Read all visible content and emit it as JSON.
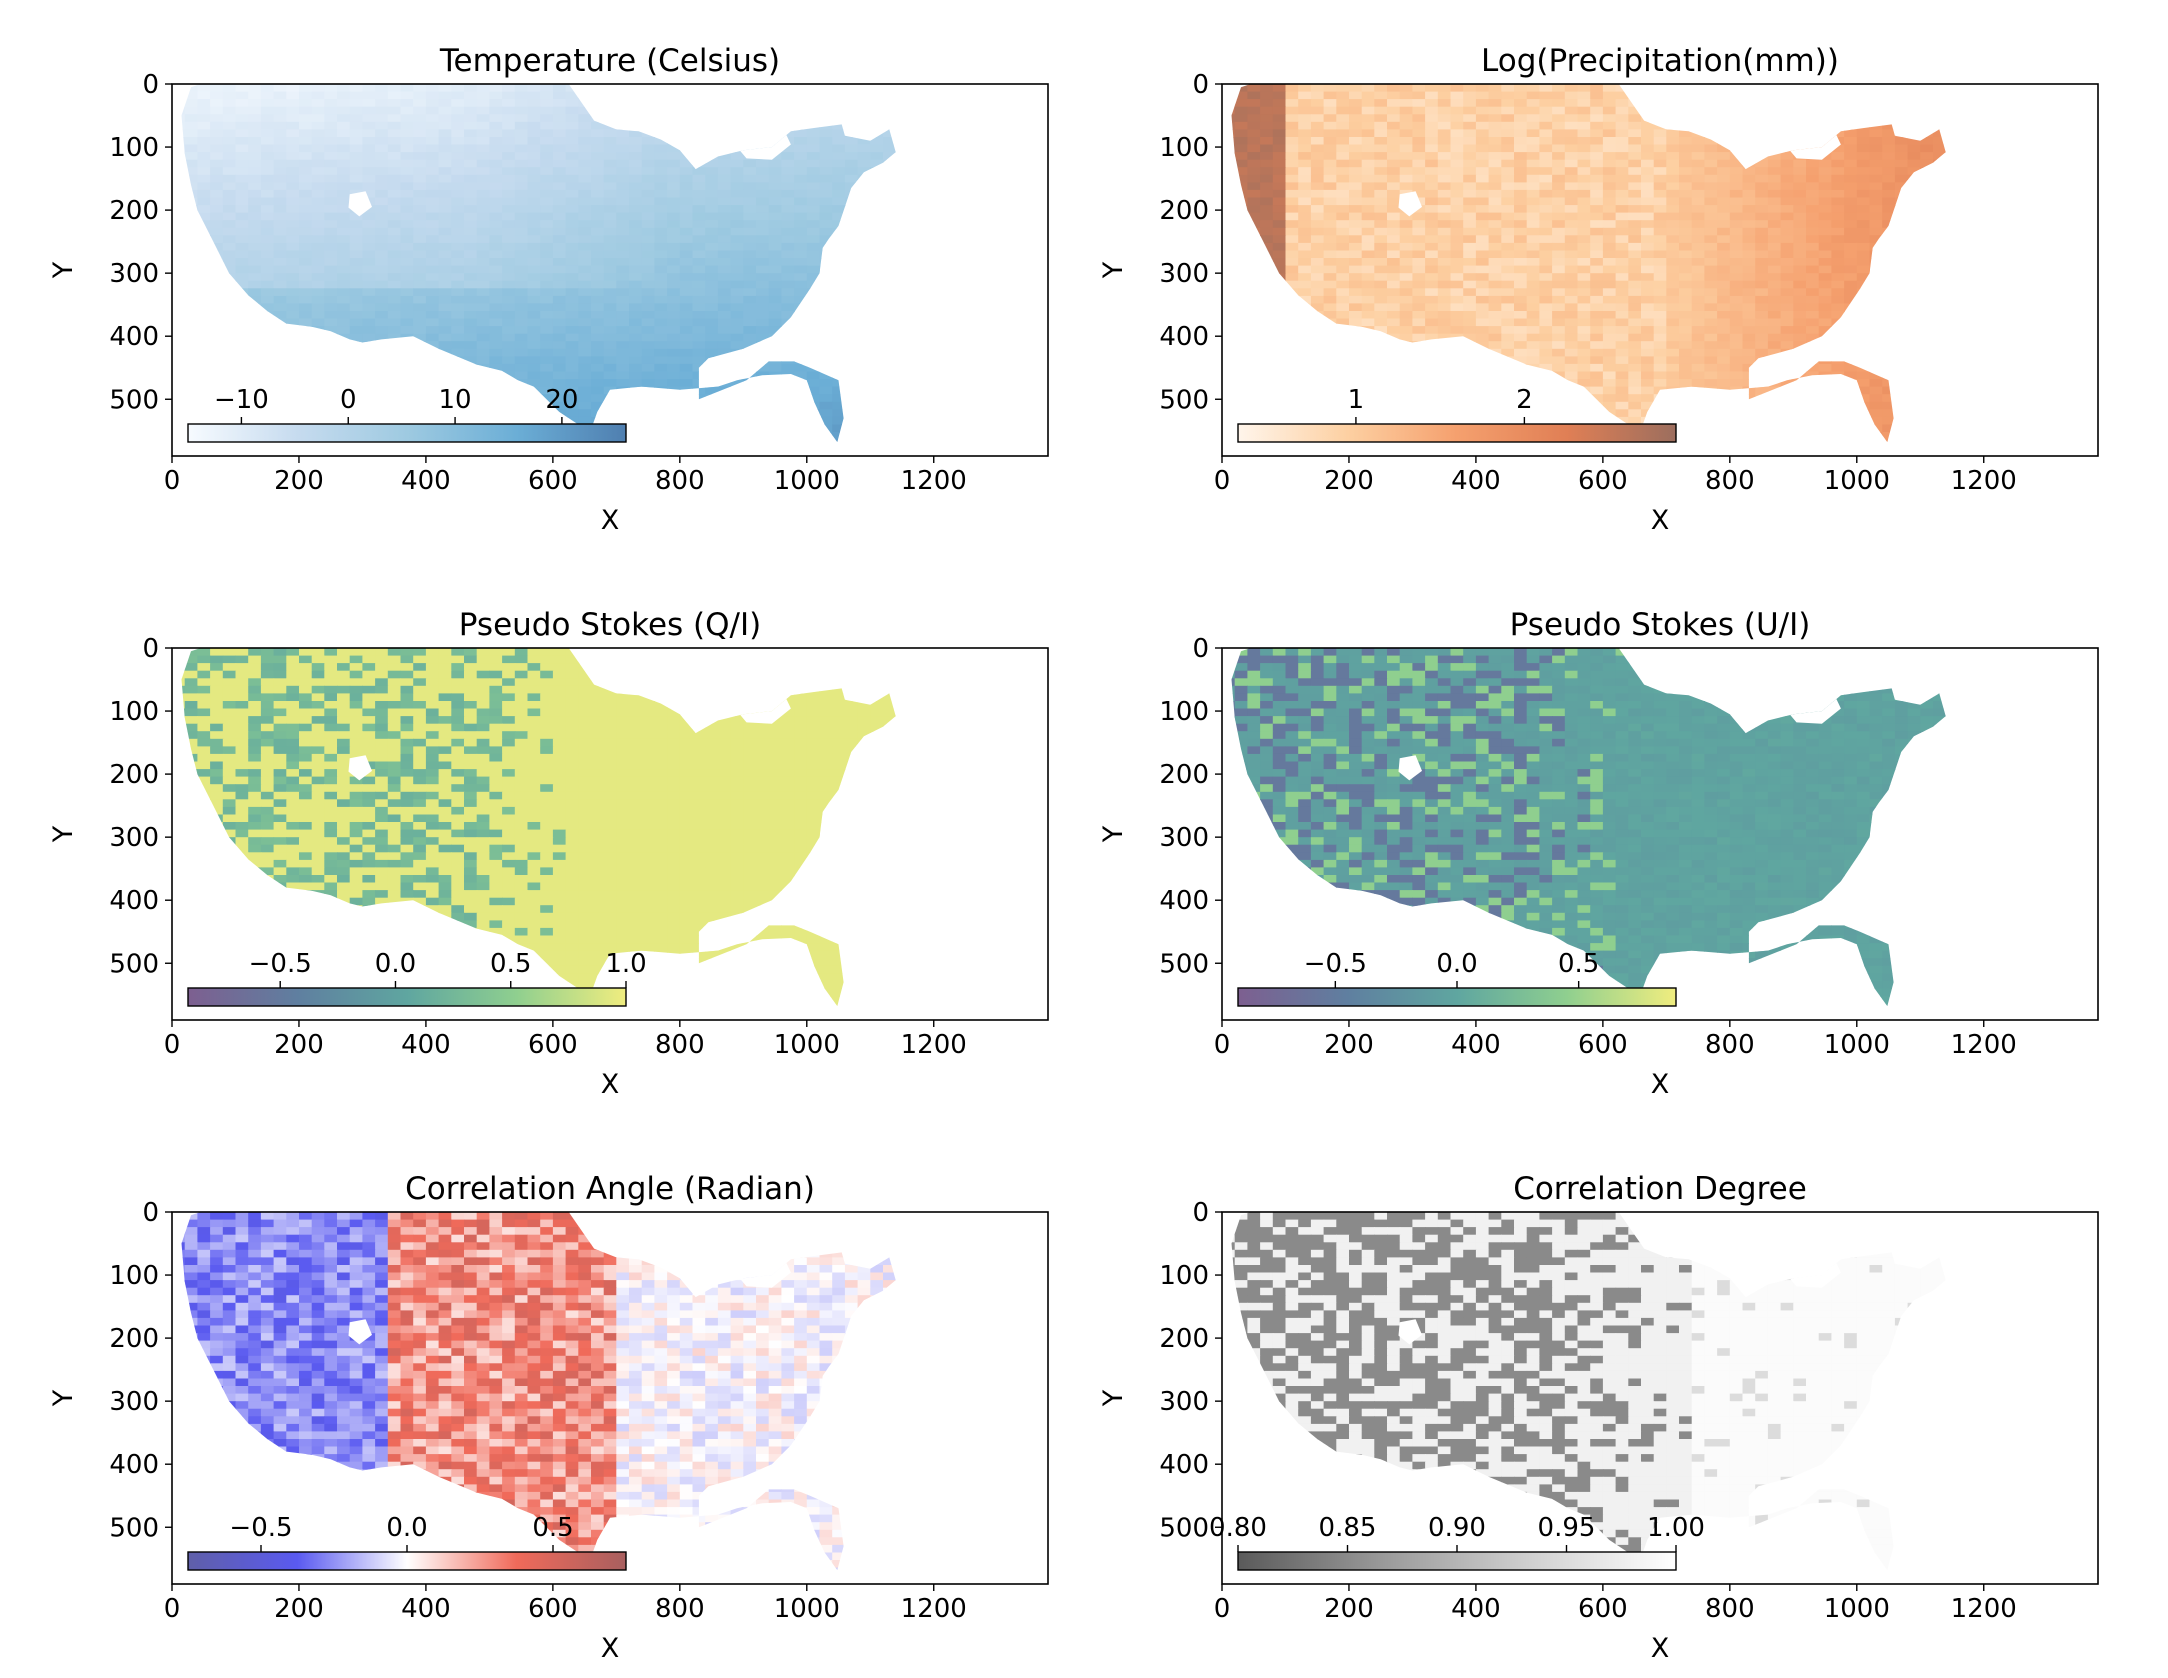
{
  "figure": {
    "layout": "3 rows x 2 columns grid of US map heatmaps, each with an inset horizontal colorbar in the lower-left"
  },
  "chart_data": [
    {
      "type": "heatmap",
      "title": "Temperature (Celsius)",
      "xlabel": "X",
      "ylabel": "Y",
      "xlim": [
        0,
        1380
      ],
      "ylim": [
        590,
        0
      ],
      "xticks": [
        "0",
        "200",
        "400",
        "600",
        "800",
        "1000",
        "1200"
      ],
      "yticks": [
        "0",
        "100",
        "200",
        "300",
        "400",
        "500"
      ],
      "colormap": "Blues",
      "colorbar": {
        "placement": "inset lower-left",
        "range": [
          -15,
          26
        ],
        "ticks": [
          -10,
          0,
          10,
          20
        ],
        "tick_labels": [
          "−10",
          "0",
          "10",
          "20"
        ],
        "colors": [
          "#f7fbff",
          "#c6dbef",
          "#9ecae1",
          "#6baed6",
          "#4f7fb0"
        ]
      },
      "data_description": "Colder in the north and mountain west, warming toward the south; warmest along the Gulf coast and Florida."
    },
    {
      "type": "heatmap",
      "title": "Log(Precipitation(mm))",
      "xlabel": "X",
      "ylabel": "Y",
      "xlim": [
        0,
        1380
      ],
      "ylim": [
        590,
        0
      ],
      "xticks": [
        "0",
        "200",
        "400",
        "600",
        "800",
        "1000",
        "1200"
      ],
      "yticks": [
        "0",
        "100",
        "200",
        "300",
        "400",
        "500"
      ],
      "colormap": "Oranges",
      "colorbar": {
        "placement": "inset lower-left",
        "range": [
          0.3,
          2.9
        ],
        "ticks": [
          1,
          2
        ],
        "tick_labels": [
          "1",
          "2"
        ],
        "colors": [
          "#fff5eb",
          "#fdd0a2",
          "#f5a06e",
          "#e07f55",
          "#9c6e5e"
        ]
      },
      "data_description": "High along the Pacific northwest coast, driest in the interior west and high plains, moderately high across the east."
    },
    {
      "type": "heatmap",
      "title": "Pseudo Stokes (Q/I)",
      "xlabel": "X",
      "ylabel": "Y",
      "xlim": [
        0,
        1380
      ],
      "ylim": [
        590,
        0
      ],
      "xticks": [
        "0",
        "200",
        "400",
        "600",
        "800",
        "1000",
        "1200"
      ],
      "yticks": [
        "0",
        "100",
        "200",
        "300",
        "400",
        "500"
      ],
      "colormap": "viridis",
      "colorbar": {
        "placement": "inset lower-left",
        "range": [
          -0.9,
          1.0
        ],
        "ticks": [
          -0.5,
          0.0,
          0.5,
          1.0
        ],
        "tick_labels": [
          "−0.5",
          "0.0",
          "0.5",
          "1.0"
        ],
        "colors": [
          "#7d5f90",
          "#5f7fa0",
          "#5fa6a0",
          "#8fcf8f",
          "#f0ed7f"
        ]
      },
      "data_description": "Mostly near 1.0 (yellow) with green-teal streaks concentrated over the western mountains."
    },
    {
      "type": "heatmap",
      "title": "Pseudo Stokes (U/I)",
      "xlabel": "X",
      "ylabel": "Y",
      "xlim": [
        0,
        1380
      ],
      "ylim": [
        590,
        0
      ],
      "xticks": [
        "0",
        "200",
        "400",
        "600",
        "800",
        "1000",
        "1200"
      ],
      "yticks": [
        "0",
        "100",
        "200",
        "300",
        "400",
        "500"
      ],
      "colormap": "viridis",
      "colorbar": {
        "placement": "inset lower-left",
        "range": [
          -0.9,
          0.9
        ],
        "ticks": [
          -0.5,
          0.0,
          0.5
        ],
        "tick_labels": [
          "−0.5",
          "0.0",
          "0.5"
        ],
        "colors": [
          "#7d5f90",
          "#5f7fa0",
          "#5fa6a0",
          "#8fcf8f",
          "#f0ed7f"
        ]
      },
      "data_description": "Mostly near 0 (teal) with purple and yellow-green streaks over the western mountains."
    },
    {
      "type": "heatmap",
      "title": "Correlation Angle (Radian)",
      "xlabel": "X",
      "ylabel": "Y",
      "xlim": [
        0,
        1380
      ],
      "ylim": [
        590,
        0
      ],
      "xticks": [
        "0",
        "200",
        "400",
        "600",
        "800",
        "1000",
        "1200"
      ],
      "yticks": [
        "0",
        "100",
        "200",
        "300",
        "400",
        "500"
      ],
      "colormap": "bwr",
      "colorbar": {
        "placement": "inset lower-left",
        "range": [
          -0.75,
          0.75
        ],
        "ticks": [
          -0.5,
          0.0,
          0.5
        ],
        "tick_labels": [
          "−0.5",
          "0.0",
          "0.5"
        ],
        "colors": [
          "#5f5fa8",
          "#5a5af0",
          "#ffffff",
          "#f06a5a",
          "#a85f5f"
        ]
      },
      "data_description": "Negative (blue) across the far west, positive (red) over the central Rockies and plains, near zero toward the east."
    },
    {
      "type": "heatmap",
      "title": "Correlation Degree",
      "xlabel": "X",
      "ylabel": "Y",
      "xlim": [
        0,
        1380
      ],
      "ylim": [
        590,
        0
      ],
      "xticks": [
        "0",
        "200",
        "400",
        "600",
        "800",
        "1000",
        "1200"
      ],
      "yticks": [
        "0",
        "100",
        "200",
        "300",
        "400",
        "500"
      ],
      "colormap": "Greys_r",
      "colorbar": {
        "placement": "inset lower-left",
        "range": [
          0.8,
          1.0
        ],
        "ticks": [
          0.8,
          0.85,
          0.9,
          0.95,
          1.0
        ],
        "tick_labels": [
          "0.80",
          "0.85",
          "0.90",
          "0.95",
          "1.00"
        ],
        "colors": [
          "#5a5a5a",
          "#9a9a9a",
          "#d0d0d0",
          "#ffffff"
        ]
      },
      "data_description": "Lower values (dark) across the western mountains, near 1.0 (white) across most of the east."
    }
  ]
}
